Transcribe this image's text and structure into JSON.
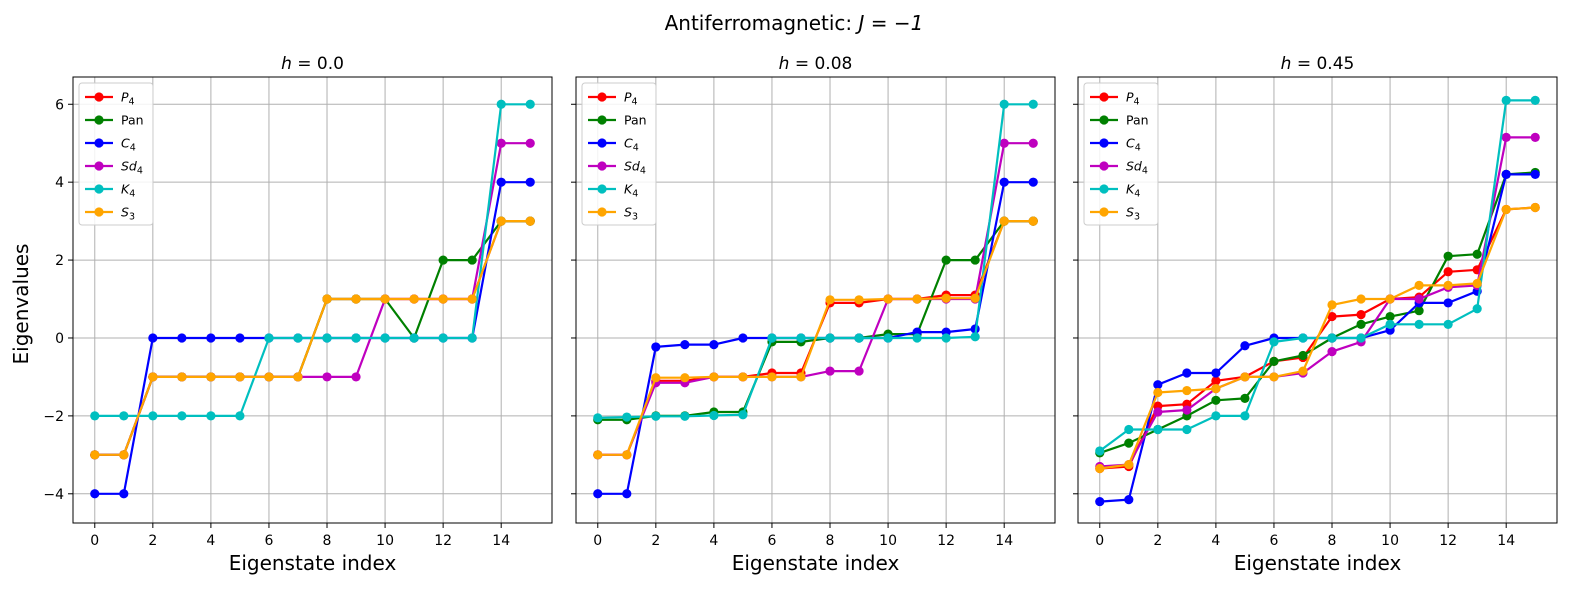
{
  "figure_title_plain": "Antiferromagnetic: ",
  "figure_title_math": "J = −1",
  "y_axis_label": "Eigenvalues",
  "colors": {
    "P4": "#ff0000",
    "Pan": "#008000",
    "C4": "#0000ff",
    "Sd4": "#bf00bf",
    "K4": "#00bfbf",
    "S3": "#ffa500",
    "grid": "#b0b0b0",
    "axes": "#000000"
  },
  "chart_data": [
    {
      "type": "line",
      "title": "h = 0.0",
      "title_var": "h",
      "title_val": " = 0.0",
      "xlabel": "Eigenstate index",
      "ylabel": "Eigenvalues",
      "xlim": [
        -0.75,
        15.75
      ],
      "ylim": [
        -4.75,
        6.7
      ],
      "xticks": [
        0,
        2,
        4,
        6,
        8,
        10,
        12,
        14
      ],
      "yticks": [
        -4,
        -2,
        0,
        2,
        4,
        6
      ],
      "ytick_labels": [
        "−4",
        "−2",
        "0",
        "2",
        "4",
        "6"
      ],
      "grid": true,
      "legend_position": "top-left",
      "x": [
        0,
        1,
        2,
        3,
        4,
        5,
        6,
        7,
        8,
        9,
        10,
        11,
        12,
        13,
        14,
        15
      ],
      "series": [
        {
          "key": "P4",
          "label_base": "P",
          "label_sub": "4",
          "values": [
            -3,
            -3,
            -1,
            -1,
            -1,
            -1,
            -1,
            -1,
            1,
            1,
            1,
            1,
            1,
            1,
            3,
            3
          ]
        },
        {
          "key": "Pan",
          "label_base": "Pan",
          "label_sub": "",
          "values": [
            -3,
            -3,
            -1,
            -1,
            -1,
            -1,
            -1,
            -1,
            1,
            1,
            1,
            0,
            2,
            2,
            3,
            3
          ]
        },
        {
          "key": "C4",
          "label_base": "C",
          "label_sub": "4",
          "values": [
            -4,
            -4,
            0,
            0,
            0,
            0,
            0,
            0,
            0,
            0,
            0,
            0,
            0,
            0,
            4,
            4
          ]
        },
        {
          "key": "Sd4",
          "label_base": "Sd",
          "label_sub": "4",
          "values": [
            -3,
            -3,
            -1,
            -1,
            -1,
            -1,
            -1,
            -1,
            -1,
            -1,
            1,
            1,
            1,
            1,
            5,
            5
          ]
        },
        {
          "key": "K4",
          "label_base": "K",
          "label_sub": "4",
          "values": [
            -2,
            -2,
            -2,
            -2,
            -2,
            -2,
            0,
            0,
            0,
            0,
            0,
            0,
            0,
            0,
            6,
            6
          ]
        },
        {
          "key": "S3",
          "label_base": "S",
          "label_sub": "3",
          "values": [
            -3,
            -3,
            -1,
            -1,
            -1,
            -1,
            -1,
            -1,
            1,
            1,
            1,
            1,
            1,
            1,
            3,
            3
          ]
        }
      ]
    },
    {
      "type": "line",
      "title": "h = 0.08",
      "title_var": "h",
      "title_val": " = 0.08",
      "xlabel": "Eigenstate index",
      "ylabel": "",
      "xlim": [
        -0.75,
        15.75
      ],
      "ylim": [
        -4.75,
        6.7
      ],
      "xticks": [
        0,
        2,
        4,
        6,
        8,
        10,
        12,
        14
      ],
      "yticks": [
        -4,
        -2,
        0,
        2,
        4,
        6
      ],
      "grid": true,
      "legend_position": "top-left",
      "x": [
        0,
        1,
        2,
        3,
        4,
        5,
        6,
        7,
        8,
        9,
        10,
        11,
        12,
        13,
        14,
        15
      ],
      "series": [
        {
          "key": "P4",
          "label_base": "P",
          "label_sub": "4",
          "values": [
            -3,
            -3,
            -1.1,
            -1.1,
            -1,
            -1,
            -0.9,
            -0.9,
            0.9,
            0.9,
            1,
            1,
            1.1,
            1.1,
            3,
            3
          ]
        },
        {
          "key": "Pan",
          "label_base": "Pan",
          "label_sub": "",
          "values": [
            -2.1,
            -2.1,
            -2,
            -2,
            -1.9,
            -1.9,
            -0.1,
            -0.1,
            0,
            0,
            0.1,
            0.1,
            2,
            2,
            3,
            3
          ]
        },
        {
          "key": "C4",
          "label_base": "C",
          "label_sub": "4",
          "values": [
            -4,
            -4,
            -0.23,
            -0.17,
            -0.17,
            0,
            0,
            0,
            0,
            0,
            0,
            0.15,
            0.15,
            0.23,
            4,
            4
          ]
        },
        {
          "key": "Sd4",
          "label_base": "Sd",
          "label_sub": "4",
          "values": [
            -3,
            -3,
            -1.15,
            -1.15,
            -1,
            -1,
            -1,
            -1,
            -0.85,
            -0.85,
            1,
            1,
            1,
            1,
            5,
            5
          ]
        },
        {
          "key": "K4",
          "label_base": "K",
          "label_sub": "4",
          "values": [
            -2.05,
            -2.03,
            -2.01,
            -2.01,
            -1.99,
            -1.97,
            0,
            0,
            0,
            0,
            0,
            0,
            0,
            0.03,
            6,
            6
          ]
        },
        {
          "key": "S3",
          "label_base": "S",
          "label_sub": "3",
          "values": [
            -3,
            -3,
            -1.02,
            -1.02,
            -1,
            -1,
            -1,
            -1,
            0.98,
            0.98,
            1,
            1,
            1.02,
            1.02,
            3,
            3
          ]
        }
      ]
    },
    {
      "type": "line",
      "title": "h = 0.45",
      "title_var": "h",
      "title_val": " = 0.45",
      "xlabel": "Eigenstate index",
      "ylabel": "",
      "xlim": [
        -0.75,
        15.75
      ],
      "ylim": [
        -4.75,
        6.7
      ],
      "xticks": [
        0,
        2,
        4,
        6,
        8,
        10,
        12,
        14
      ],
      "yticks": [
        -4,
        -2,
        0,
        2,
        4,
        6
      ],
      "grid": true,
      "legend_position": "top-left",
      "x": [
        0,
        1,
        2,
        3,
        4,
        5,
        6,
        7,
        8,
        9,
        10,
        11,
        12,
        13,
        14,
        15
      ],
      "series": [
        {
          "key": "P4",
          "label_base": "P",
          "label_sub": "4",
          "values": [
            -3.35,
            -3.3,
            -1.75,
            -1.7,
            -1.1,
            -1.0,
            -0.6,
            -0.5,
            0.55,
            0.6,
            1.0,
            1.05,
            1.7,
            1.75,
            3.3,
            3.35
          ]
        },
        {
          "key": "Pan",
          "label_base": "Pan",
          "label_sub": "",
          "values": [
            -2.95,
            -2.7,
            -2.35,
            -2.0,
            -1.6,
            -1.55,
            -0.6,
            -0.45,
            0,
            0.35,
            0.55,
            0.7,
            2.1,
            2.15,
            4.2,
            4.25
          ]
        },
        {
          "key": "C4",
          "label_base": "C",
          "label_sub": "4",
          "values": [
            -4.2,
            -4.15,
            -1.2,
            -0.9,
            -0.9,
            -0.2,
            0,
            0,
            0,
            0,
            0.2,
            0.9,
            0.9,
            1.2,
            4.2,
            4.2
          ]
        },
        {
          "key": "Sd4",
          "label_base": "Sd",
          "label_sub": "4",
          "values": [
            -3.3,
            -3.25,
            -1.9,
            -1.85,
            -1.3,
            -1.0,
            -1.0,
            -0.9,
            -0.35,
            -0.1,
            1.0,
            1.0,
            1.3,
            1.35,
            5.15,
            5.15
          ]
        },
        {
          "key": "K4",
          "label_base": "K",
          "label_sub": "4",
          "values": [
            -2.9,
            -2.35,
            -2.35,
            -2.35,
            -2.0,
            -2.0,
            -0.1,
            0,
            0,
            0,
            0.35,
            0.35,
            0.35,
            0.75,
            6.1,
            6.1
          ]
        },
        {
          "key": "S3",
          "label_base": "S",
          "label_sub": "3",
          "values": [
            -3.35,
            -3.25,
            -1.4,
            -1.35,
            -1.3,
            -1.0,
            -1.0,
            -0.85,
            0.85,
            1.0,
            1.0,
            1.35,
            1.35,
            1.4,
            3.3,
            3.35
          ]
        }
      ]
    }
  ]
}
